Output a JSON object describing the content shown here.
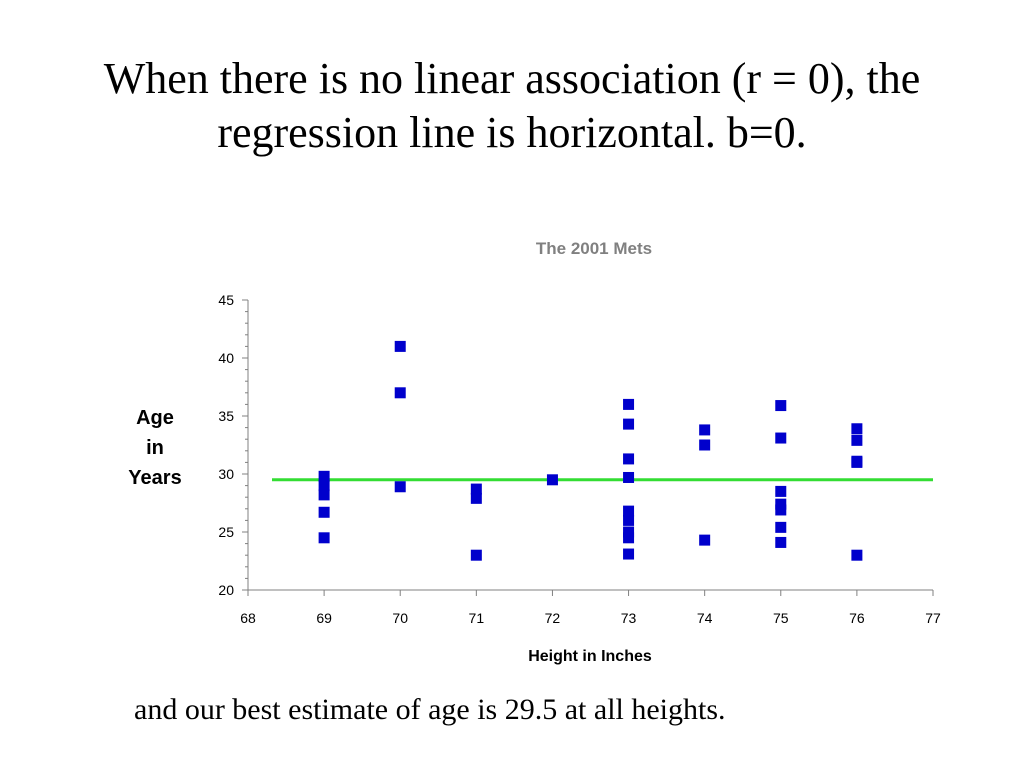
{
  "slide": {
    "title_line1": "When there is no linear association (r = 0), the",
    "title_line2": "regression line is horizontal. b=0.",
    "caption": "and our best estimate of age is 29.5 at all heights."
  },
  "colors": {
    "marker": "#0000CC",
    "regression_line": "#33DD33",
    "chart_title": "#808080"
  },
  "chart_data": {
    "type": "scatter",
    "title": "The 2001 Mets",
    "xlabel": "Height in Inches",
    "ylabel_lines": [
      "Age",
      "in",
      "Years"
    ],
    "xlim": [
      68,
      77
    ],
    "ylim": [
      20,
      45
    ],
    "x_ticks": [
      68,
      69,
      70,
      71,
      72,
      73,
      74,
      75,
      76,
      77
    ],
    "y_ticks": [
      20,
      25,
      30,
      35,
      40,
      45
    ],
    "grid": false,
    "regression_line": {
      "intercept": 29.5,
      "slope": 0
    },
    "points": [
      [
        69,
        29.8
      ],
      [
        69,
        29.0
      ],
      [
        69,
        28.2
      ],
      [
        69,
        26.7
      ],
      [
        69,
        24.5
      ],
      [
        70,
        41.0
      ],
      [
        70,
        37.0
      ],
      [
        70,
        28.9
      ],
      [
        71,
        28.7
      ],
      [
        71,
        27.9
      ],
      [
        71,
        23.0
      ],
      [
        72,
        29.5
      ],
      [
        73,
        36.0
      ],
      [
        73,
        34.3
      ],
      [
        73,
        31.3
      ],
      [
        73,
        29.7
      ],
      [
        73,
        26.8
      ],
      [
        73,
        26.0
      ],
      [
        73,
        25.0
      ],
      [
        73,
        24.5
      ],
      [
        73,
        23.1
      ],
      [
        74,
        33.8
      ],
      [
        74,
        32.5
      ],
      [
        74,
        24.3
      ],
      [
        75,
        35.9
      ],
      [
        75,
        33.1
      ],
      [
        75,
        28.5
      ],
      [
        75,
        27.4
      ],
      [
        75,
        26.9
      ],
      [
        75,
        25.4
      ],
      [
        75,
        24.1
      ],
      [
        76,
        33.9
      ],
      [
        76,
        32.9
      ],
      [
        76,
        31.1
      ],
      [
        76,
        31.0
      ],
      [
        76,
        23.0
      ]
    ]
  }
}
